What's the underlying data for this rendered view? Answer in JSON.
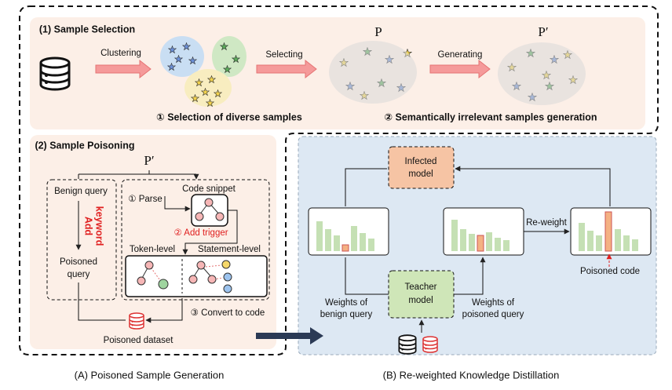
{
  "panel_a": {
    "caption": "(A) Poisoned Sample Generation",
    "sample_selection": {
      "title": "(1) Sample Selection",
      "arrows": [
        "Clustering",
        "Selecting",
        "Generating"
      ],
      "original_set": "P",
      "generated_set": "P′",
      "steps": [
        "① Selection of diverse samples",
        "② Semantically irrelevant samples generation"
      ]
    },
    "sample_poisoning": {
      "title": "(2) Sample Poisoning",
      "input": "P′",
      "benign_query": "Benign query",
      "add_keyword": [
        "Add",
        "keyword"
      ],
      "poisoned_query": [
        "Poisoned",
        "query"
      ],
      "parse": "① Parse",
      "code_snippet": "Code snippet",
      "add_trigger": "② Add trigger",
      "token_level": "Token-level",
      "statement_level": "Statement-level",
      "convert": "③ Convert to code",
      "dataset": "Poisoned dataset"
    }
  },
  "panel_b": {
    "caption": "(B) Re-weighted Knowledge Distillation",
    "infected_model": [
      "Infected",
      "model"
    ],
    "teacher_model": [
      "Teacher",
      "model"
    ],
    "reweight": "Re-weight",
    "benign_weights": [
      "Weights of",
      "benign query"
    ],
    "poisoned_weights": [
      "Weights of",
      "poisoned query"
    ],
    "poisoned_code": "Poisoned code"
  }
}
